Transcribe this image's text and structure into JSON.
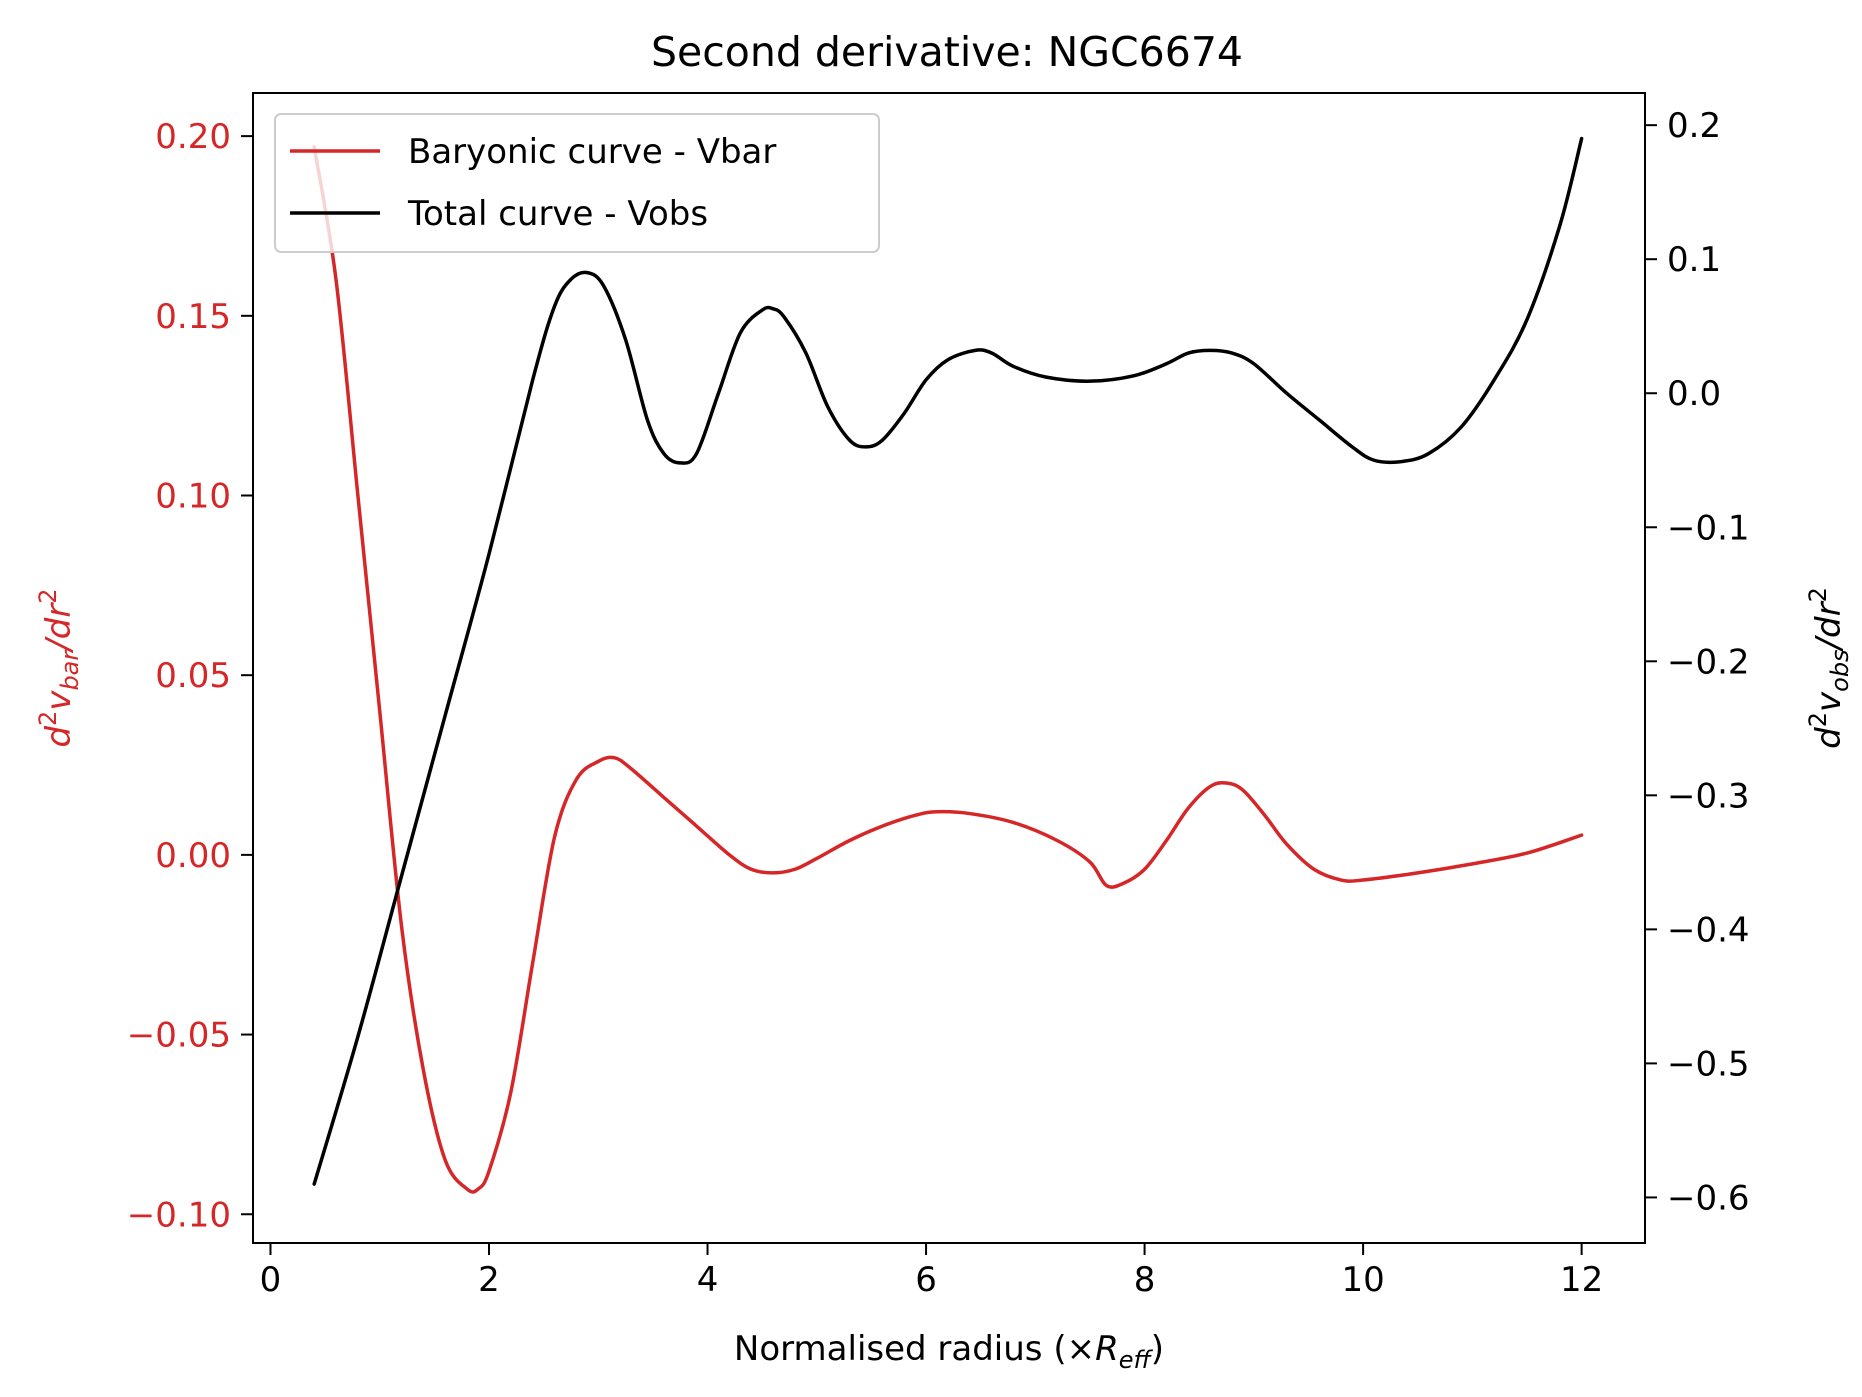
{
  "chart_data": {
    "type": "line",
    "title": "Second derivative: NGC6674",
    "xlabel": "Normalised radius (×R_eff)",
    "xlabel_parts": {
      "prefix": "Normalised radius (×",
      "symbol": "R",
      "subscript": "eff",
      "suffix": ")"
    },
    "ylabel_left": "d²v_bar/dr²",
    "ylabel_left_parts": {
      "d": "d",
      "sup1": "2",
      "v": "v",
      "sub": "bar",
      "dr": "/dr",
      "sup2": "2"
    },
    "ylabel_right": "d²v_obs/dr²",
    "ylabel_right_parts": {
      "d": "d",
      "sup1": "2",
      "v": "v",
      "sub": "obs",
      "dr": "/dr",
      "sup2": "2"
    },
    "xlim": [
      -0.16,
      12.58
    ],
    "ylim_left": [
      -0.108,
      0.212
    ],
    "ylim_right": [
      -0.634,
      0.224
    ],
    "xticks": [
      0,
      2,
      4,
      6,
      8,
      10,
      12
    ],
    "xtick_labels": [
      "0",
      "2",
      "4",
      "6",
      "8",
      "10",
      "12"
    ],
    "yticks_left": [
      -0.1,
      -0.05,
      0.0,
      0.05,
      0.1,
      0.15,
      0.2
    ],
    "ytick_labels_left": [
      "−0.10",
      "−0.05",
      "0.00",
      "0.05",
      "0.10",
      "0.15",
      "0.20"
    ],
    "yticks_right": [
      -0.6,
      -0.5,
      -0.4,
      -0.3,
      -0.2,
      -0.1,
      0.0,
      0.1,
      0.2
    ],
    "ytick_labels_right": [
      "−0.6",
      "−0.5",
      "−0.4",
      "−0.3",
      "−0.2",
      "−0.1",
      "0.0",
      "0.1",
      "0.2"
    ],
    "grid": false,
    "legend_position": "top-left",
    "colors": {
      "bar": "#d62728",
      "obs": "#000000",
      "left_axis": "#d62728",
      "right_axis": "#000000"
    },
    "series": [
      {
        "name": "Baryonic curve - Vbar",
        "axis": "left",
        "color": "#d62728",
        "points": [
          [
            0.4,
            0.197
          ],
          [
            0.6,
            0.16
          ],
          [
            0.8,
            0.1
          ],
          [
            1.0,
            0.04
          ],
          [
            1.2,
            -0.02
          ],
          [
            1.4,
            -0.06
          ],
          [
            1.6,
            -0.085
          ],
          [
            1.8,
            -0.093
          ],
          [
            1.9,
            -0.093
          ],
          [
            2.0,
            -0.088
          ],
          [
            2.2,
            -0.066
          ],
          [
            2.4,
            -0.03
          ],
          [
            2.6,
            0.005
          ],
          [
            2.8,
            0.021
          ],
          [
            3.0,
            0.026
          ],
          [
            3.15,
            0.027
          ],
          [
            3.3,
            0.024
          ],
          [
            3.6,
            0.016
          ],
          [
            3.9,
            0.008
          ],
          [
            4.2,
            0.0
          ],
          [
            4.4,
            -0.004
          ],
          [
            4.6,
            -0.005
          ],
          [
            4.8,
            -0.004
          ],
          [
            5.0,
            -0.001
          ],
          [
            5.3,
            0.004
          ],
          [
            5.6,
            0.008
          ],
          [
            5.9,
            0.011
          ],
          [
            6.1,
            0.012
          ],
          [
            6.4,
            0.0115
          ],
          [
            6.8,
            0.009
          ],
          [
            7.2,
            0.004
          ],
          [
            7.5,
            -0.002
          ],
          [
            7.65,
            -0.0085
          ],
          [
            7.8,
            -0.008
          ],
          [
            8.0,
            -0.004
          ],
          [
            8.2,
            0.004
          ],
          [
            8.4,
            0.013
          ],
          [
            8.6,
            0.019
          ],
          [
            8.75,
            0.02
          ],
          [
            8.9,
            0.018
          ],
          [
            9.1,
            0.011
          ],
          [
            9.3,
            0.003
          ],
          [
            9.55,
            -0.004
          ],
          [
            9.8,
            -0.007
          ],
          [
            10.0,
            -0.007
          ],
          [
            10.5,
            -0.005
          ],
          [
            11.0,
            -0.0025
          ],
          [
            11.5,
            0.0005
          ],
          [
            12.0,
            0.0055
          ]
        ]
      },
      {
        "name": "Total curve - Vobs",
        "axis": "right",
        "color": "#000000",
        "points": [
          [
            0.4,
            -0.59
          ],
          [
            0.8,
            -0.48
          ],
          [
            1.2,
            -0.36
          ],
          [
            1.6,
            -0.24
          ],
          [
            2.0,
            -0.12
          ],
          [
            2.4,
            0.01
          ],
          [
            2.6,
            0.065
          ],
          [
            2.75,
            0.085
          ],
          [
            2.9,
            0.09
          ],
          [
            3.05,
            0.08
          ],
          [
            3.25,
            0.04
          ],
          [
            3.45,
            -0.02
          ],
          [
            3.6,
            -0.045
          ],
          [
            3.75,
            -0.052
          ],
          [
            3.9,
            -0.045
          ],
          [
            4.1,
            0.0
          ],
          [
            4.3,
            0.045
          ],
          [
            4.5,
            0.062
          ],
          [
            4.6,
            0.063
          ],
          [
            4.7,
            0.057
          ],
          [
            4.9,
            0.03
          ],
          [
            5.1,
            -0.01
          ],
          [
            5.3,
            -0.035
          ],
          [
            5.45,
            -0.04
          ],
          [
            5.6,
            -0.035
          ],
          [
            5.8,
            -0.015
          ],
          [
            6.0,
            0.01
          ],
          [
            6.2,
            0.025
          ],
          [
            6.45,
            0.032
          ],
          [
            6.6,
            0.03
          ],
          [
            6.8,
            0.02
          ],
          [
            7.1,
            0.012
          ],
          [
            7.5,
            0.009
          ],
          [
            7.9,
            0.013
          ],
          [
            8.2,
            0.022
          ],
          [
            8.4,
            0.03
          ],
          [
            8.6,
            0.032
          ],
          [
            8.8,
            0.03
          ],
          [
            9.0,
            0.022
          ],
          [
            9.3,
            0.0
          ],
          [
            9.6,
            -0.02
          ],
          [
            9.9,
            -0.04
          ],
          [
            10.1,
            -0.05
          ],
          [
            10.35,
            -0.051
          ],
          [
            10.6,
            -0.045
          ],
          [
            10.9,
            -0.025
          ],
          [
            11.2,
            0.01
          ],
          [
            11.5,
            0.055
          ],
          [
            11.8,
            0.125
          ],
          [
            12.0,
            0.19
          ]
        ]
      }
    ]
  }
}
